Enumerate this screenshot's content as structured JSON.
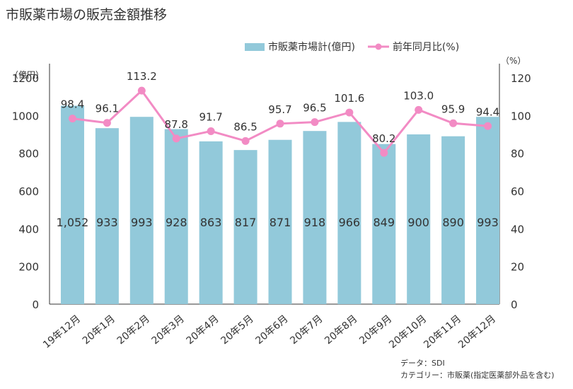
{
  "title": "市販薬市場の販売金額推移",
  "chart_data": {
    "type": "bar+line",
    "categories": [
      "19年12月",
      "20年1月",
      "20年2月",
      "20年3月",
      "20年4月",
      "20年5月",
      "20年6月",
      "20年7月",
      "20年8月",
      "20年9月",
      "20年10月",
      "20年11月",
      "20年12月"
    ],
    "series": [
      {
        "name": "市販薬市場計(億円)",
        "type": "bar",
        "axis": "left",
        "values": [
          1052,
          933,
          993,
          928,
          863,
          817,
          871,
          918,
          966,
          849,
          900,
          890,
          993
        ],
        "labels": [
          "1,052",
          "933",
          "993",
          "928",
          "863",
          "817",
          "871",
          "918",
          "966",
          "849",
          "900",
          "890",
          "993"
        ],
        "color": "#92C9DA"
      },
      {
        "name": "前年同月比(%)",
        "type": "line",
        "axis": "right",
        "values": [
          98.4,
          96.1,
          113.2,
          87.8,
          91.7,
          86.5,
          95.7,
          96.5,
          101.6,
          80.2,
          103.0,
          95.9,
          94.4
        ],
        "labels": [
          "98.4",
          "96.1",
          "113.2",
          "87.8",
          "91.7",
          "86.5",
          "95.7",
          "96.5",
          "101.6",
          "80.2",
          "103.0",
          "95.9",
          "94.4"
        ],
        "color": "#F28BC4"
      }
    ],
    "left_axis": {
      "unit": "（億円）",
      "range": [
        0,
        1200
      ],
      "ticks": [
        "0",
        "200",
        "400",
        "600",
        "800",
        "1000",
        "1200"
      ]
    },
    "right_axis": {
      "unit": "（%）",
      "range": [
        0,
        120
      ],
      "ticks": [
        "0",
        "20",
        "40",
        "60",
        "80",
        "100",
        "120"
      ]
    },
    "grid": false,
    "legend_position": "top-right"
  },
  "source": {
    "data_line": "データ：SDI",
    "category_line": "カテゴリー：市販薬(指定医薬部外品を含む)"
  }
}
